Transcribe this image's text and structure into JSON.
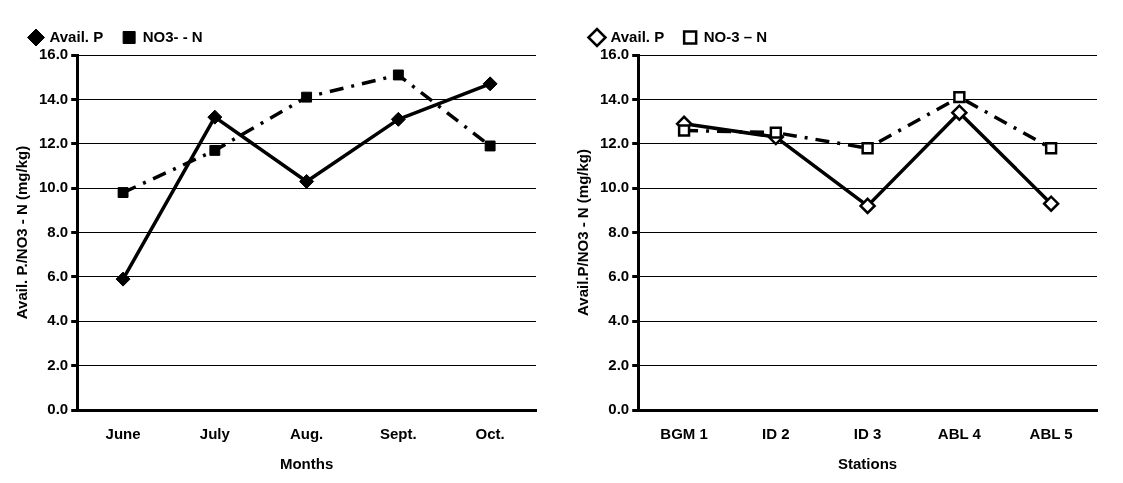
{
  "chart_data": [
    {
      "type": "line",
      "xlabel": "Months",
      "ylabel": "Avail. P./NO3 - N (mg/kg)",
      "categories": [
        "June",
        "July",
        "Aug.",
        "Sept.",
        "Oct."
      ],
      "series": [
        {
          "name": "Avail. P",
          "color": "#000000",
          "marker": "diamond",
          "line_style": "solid",
          "values": [
            5.9,
            13.2,
            10.3,
            13.1,
            14.7
          ]
        },
        {
          "name": "NO3- - N",
          "color": "#000000",
          "marker": "square",
          "line_style": "dashed",
          "values": [
            9.8,
            11.7,
            14.1,
            15.1,
            11.9
          ]
        }
      ],
      "ylim": [
        0,
        16
      ],
      "yticks": [
        {
          "value": 0,
          "label": "0.0"
        },
        {
          "value": 2,
          "label": "2.0"
        },
        {
          "value": 4,
          "label": "4.0"
        },
        {
          "value": 6,
          "label": "6.0"
        },
        {
          "value": 8,
          "label": "8.0"
        },
        {
          "value": 10,
          "label": "10.0"
        },
        {
          "value": 12,
          "label": "12.0"
        },
        {
          "value": 14,
          "label": "14.0"
        },
        {
          "value": 16,
          "label": "16.0"
        }
      ],
      "grid": "y",
      "legend": "top"
    },
    {
      "type": "line",
      "xlabel": "Stations",
      "ylabel": "Avail.P/NO3 - N (mg/kg)",
      "categories": [
        "BGM 1",
        "ID 2",
        "ID 3",
        "ABL 4",
        "ABL 5"
      ],
      "series": [
        {
          "name": "Avail. P",
          "color": "#000000",
          "marker": "diamond",
          "line_style": "solid",
          "values": [
            12.9,
            12.3,
            9.2,
            13.4,
            9.3
          ]
        },
        {
          "name": "NO-3 – N",
          "color": "#000000",
          "marker": "square",
          "line_style": "dashed",
          "values": [
            12.6,
            12.5,
            11.8,
            14.1,
            11.8
          ]
        }
      ],
      "ylim": [
        0,
        16
      ],
      "yticks": [
        {
          "value": 0,
          "label": "0.0"
        },
        {
          "value": 2,
          "label": "2.0"
        },
        {
          "value": 4,
          "label": "4.0"
        },
        {
          "value": 6,
          "label": "6.0"
        },
        {
          "value": 8,
          "label": "8.0"
        },
        {
          "value": 10,
          "label": "10.0"
        },
        {
          "value": 12,
          "label": "12.0"
        },
        {
          "value": 14,
          "label": "14.0"
        },
        {
          "value": 16,
          "label": "16.0"
        }
      ],
      "grid": "y",
      "legend": "top"
    }
  ]
}
